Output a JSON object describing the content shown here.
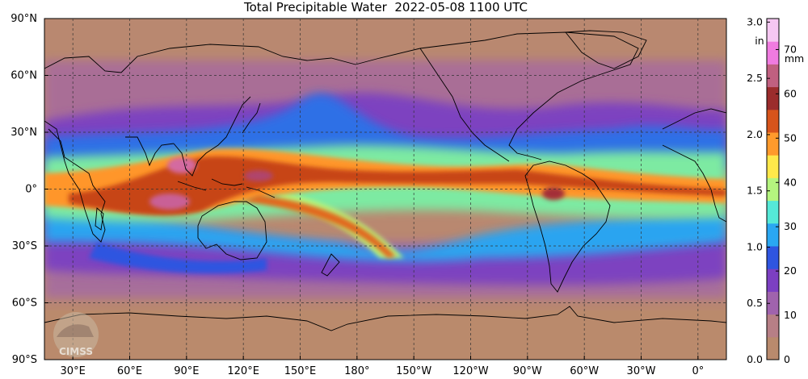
{
  "title": "Total Precipitable Water  2022-05-08 1100 UTC",
  "map": {
    "lat_labels": [
      "90°N",
      "60°N",
      "30°N",
      "0°",
      "30°S",
      "60°S",
      "90°S"
    ],
    "lat_values": [
      90,
      60,
      30,
      0,
      -30,
      -60,
      -90
    ],
    "lon_labels": [
      "30°E",
      "60°E",
      "90°E",
      "120°E",
      "150°E",
      "180°",
      "150°W",
      "120°W",
      "90°W",
      "60°W",
      "30°W",
      "0°"
    ],
    "lon_values": [
      30,
      60,
      90,
      120,
      150,
      180,
      210,
      240,
      270,
      300,
      330,
      360
    ],
    "lon_range": [
      15,
      375
    ],
    "lat_range": [
      -90,
      90
    ],
    "gridlines": true
  },
  "colorbar": {
    "units_left": "in",
    "units_right": "mm",
    "in_ticks": [
      "3.0",
      "2.5",
      "2.0",
      "1.5",
      "1.0",
      "0.5",
      "0.0"
    ],
    "in_values": [
      3.0,
      2.5,
      2.0,
      1.5,
      1.0,
      0.5,
      0.0
    ],
    "mm_ticks": [
      "70",
      "60",
      "50",
      "40",
      "30",
      "20",
      "10",
      "0"
    ],
    "mm_values": [
      70,
      60,
      50,
      40,
      30,
      20,
      10,
      0
    ],
    "max_mm": 77,
    "colors": [
      "#b98a6d",
      "#b77f86",
      "#a063ad",
      "#7c3fc2",
      "#2f55e0",
      "#2aa7f2",
      "#55e9d8",
      "#b5f57f",
      "#ffe84a",
      "#ff9a2c",
      "#d7541b",
      "#9b2c2c",
      "#c06080",
      "#f07be0",
      "#f6c7f2"
    ]
  },
  "logo": {
    "text": "CIMSS"
  }
}
